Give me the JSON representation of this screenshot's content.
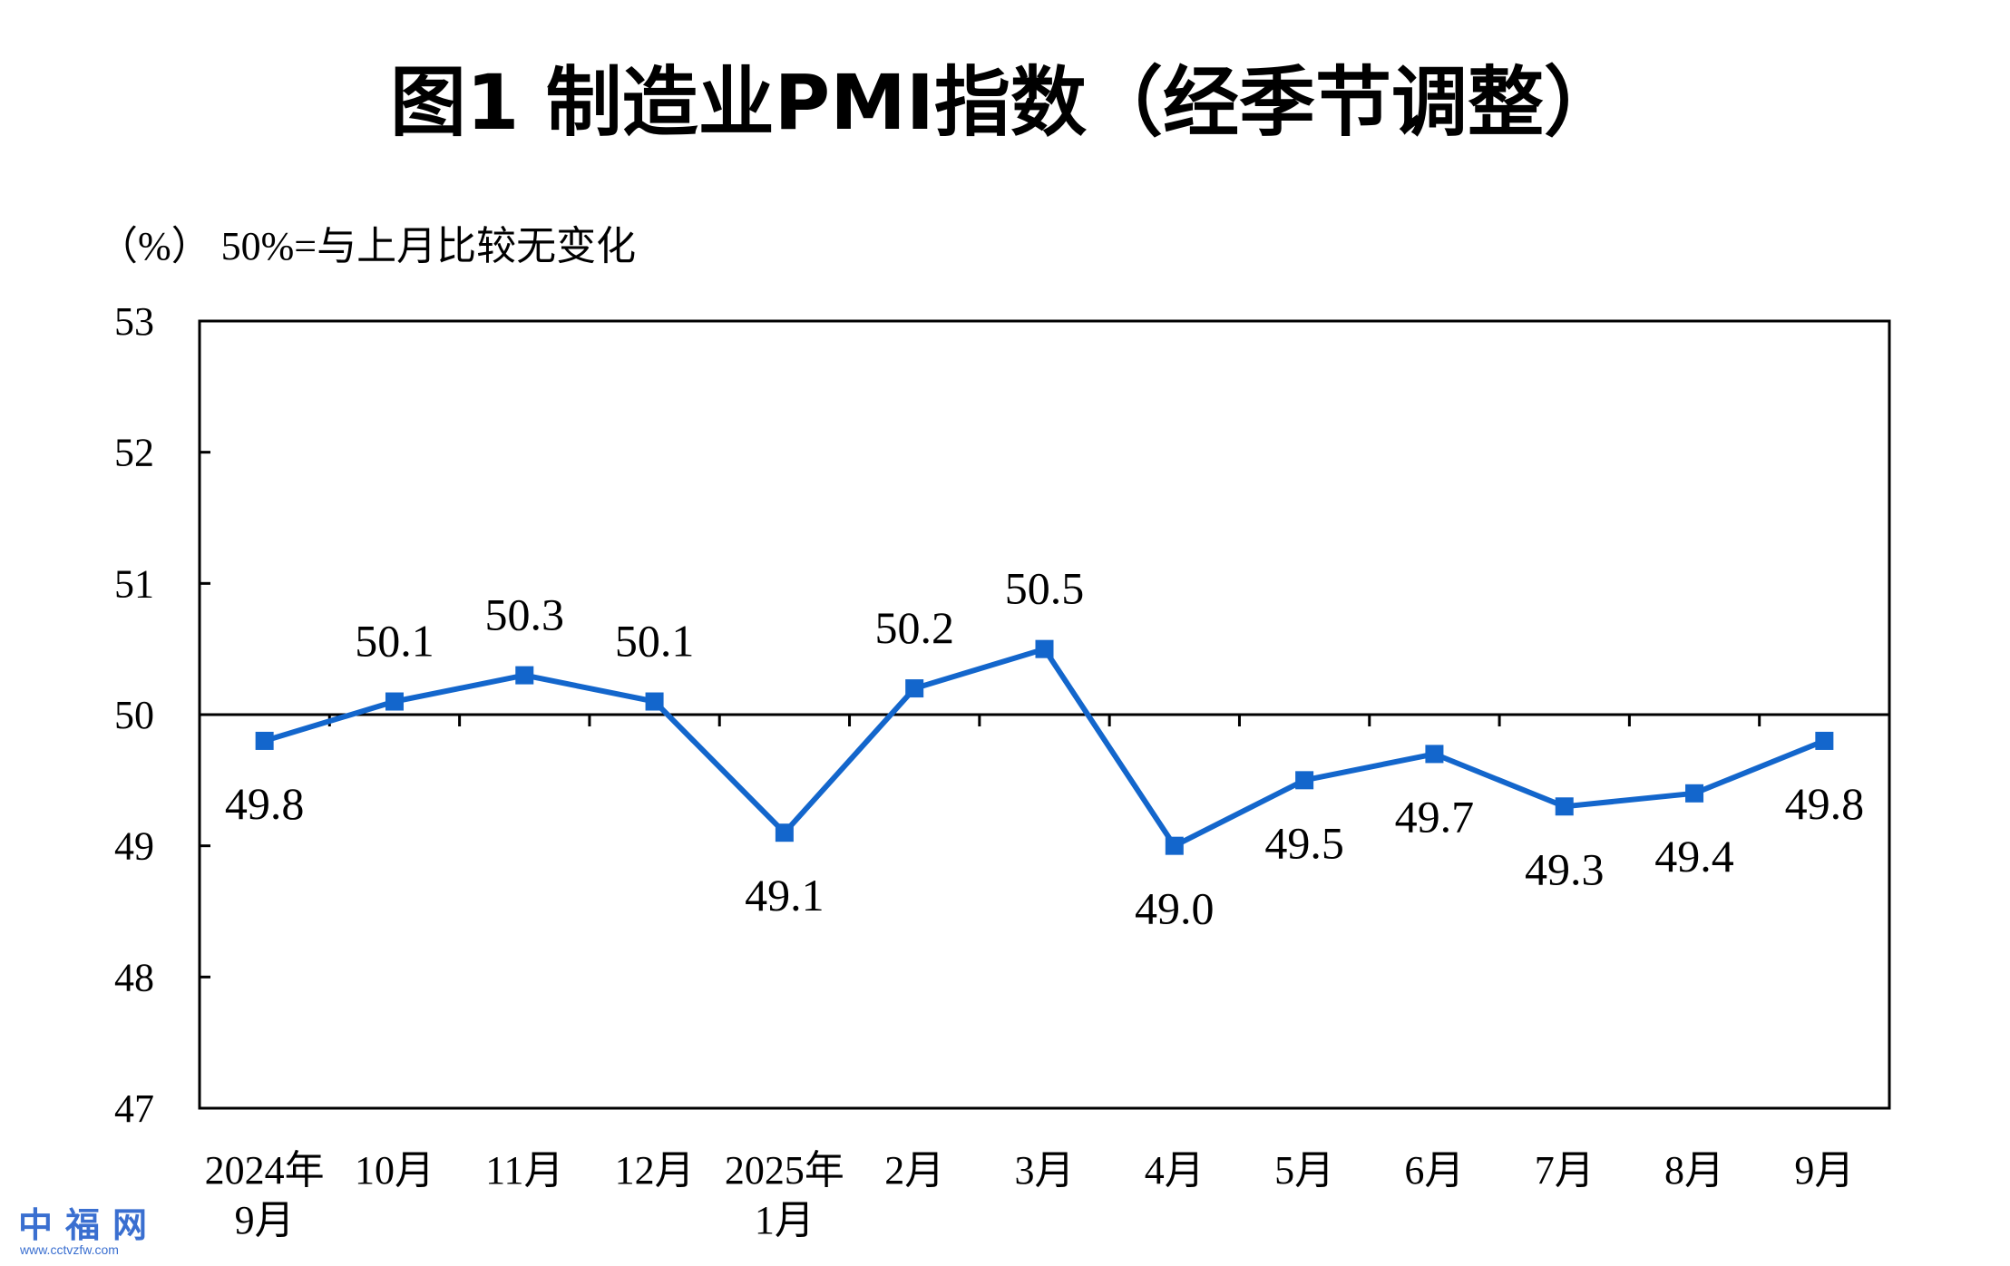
{
  "chart_data": {
    "type": "line",
    "title": "图1 制造业PMI指数（经季节调整）",
    "unit_note": "（%）  50%=与上月比较无变化",
    "x": [
      "2024年\n9月",
      "10月",
      "11月",
      "12月",
      "2025年\n1月",
      "2月",
      "3月",
      "4月",
      "5月",
      "6月",
      "7月",
      "8月",
      "9月"
    ],
    "series": [
      {
        "values": [
          49.8,
          50.1,
          50.3,
          50.1,
          49.1,
          50.2,
          50.5,
          49.0,
          49.5,
          49.7,
          49.3,
          49.4,
          49.8
        ]
      }
    ],
    "data_labels": [
      "49.8",
      "50.1",
      "50.3",
      "50.1",
      "49.1",
      "50.2",
      "50.5",
      "49.0",
      "49.5",
      "49.7",
      "49.3",
      "49.4",
      "49.8"
    ],
    "ylim": [
      47,
      53
    ],
    "yticks": [
      "47",
      "48",
      "49",
      "50",
      "51",
      "52",
      "53"
    ],
    "reference_line": 50,
    "grid": false,
    "legend": "none",
    "line_color": "#1366cc",
    "marker": "square"
  },
  "watermark": {
    "text": "中福网",
    "url": "www.cctvzfw.com",
    "color": "#3a6fd0"
  }
}
